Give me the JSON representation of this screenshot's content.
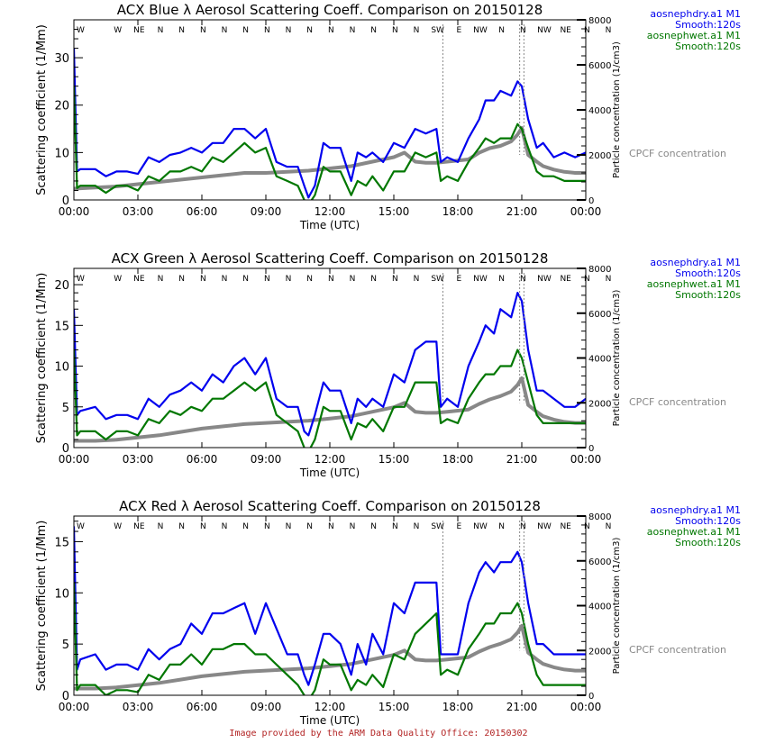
{
  "footer": {
    "text": "Image provided by the ARM Data Quality Office: 20150302",
    "color": "#b22222"
  },
  "colors": {
    "dry": "#0000ee",
    "wet": "#007700",
    "cpc": "#888888",
    "axis": "#000000"
  },
  "legend": {
    "dry_label": "aosnephdry.a1 M1",
    "dry_smooth": "Smooth:120s",
    "wet_label": "aosnephwet.a1 M1",
    "wet_smooth": "Smooth:120s",
    "cpc_label": "CPCF concentration"
  },
  "chart_data": [
    {
      "type": "line",
      "title": "ACX Blue λ Aerosol Scattering Coeff. Comparison on 20150128",
      "xlabel": "Time (UTC)",
      "ylabel": "Scattering coefficient (1/Mm)",
      "y2label": "Particle concentration (1/cm3)",
      "x_ticks": [
        "00:00",
        "03:00",
        "06:00",
        "09:00",
        "12:00",
        "15:00",
        "18:00",
        "21:00",
        "00:00"
      ],
      "xlim_hours": [
        0,
        24
      ],
      "ylim": [
        0,
        38
      ],
      "y_ticks": [
        0,
        10,
        20,
        30
      ],
      "y2lim": [
        0,
        8000
      ],
      "y2_ticks": [
        0,
        2000,
        4000,
        6000,
        8000
      ],
      "wind_dirs": [
        "W",
        "W",
        "NE",
        "N",
        "N",
        "N",
        "N",
        "N",
        "N",
        "N",
        "N",
        "N",
        "N",
        "N",
        "N",
        "N",
        "SW",
        "E",
        "NW",
        "N",
        "N",
        "NW",
        "NE",
        "N",
        "N"
      ],
      "series": [
        {
          "name": "aosnephdry.a1 M1",
          "color": "#0000ee",
          "x": [
            0,
            0.15,
            0.3,
            1,
            1.5,
            2,
            2.5,
            3,
            3.5,
            4,
            4.5,
            5,
            5.5,
            6,
            6.5,
            7,
            7.5,
            8,
            8.5,
            9,
            9.5,
            10,
            10.5,
            10.8,
            11,
            11.3,
            11.7,
            12,
            12.5,
            13,
            13.3,
            13.7,
            14,
            14.5,
            15,
            15.5,
            16,
            16.5,
            17,
            17.2,
            17.5,
            18,
            18.5,
            19,
            19.3,
            19.7,
            20,
            20.5,
            20.8,
            21,
            21.3,
            21.7,
            22,
            22.5,
            23,
            23.5,
            24
          ],
          "y": [
            32,
            6,
            6.5,
            6.5,
            5,
            6,
            6,
            5.5,
            9,
            8,
            9.5,
            10,
            11,
            10,
            12,
            12,
            15,
            15,
            13,
            15,
            8,
            7,
            7,
            3,
            0.5,
            3,
            12,
            11,
            11,
            4,
            10,
            9,
            10,
            8,
            12,
            11,
            15,
            14,
            15,
            8,
            9,
            8,
            13,
            17,
            21,
            21,
            23,
            22,
            25,
            24,
            17,
            11,
            12,
            9,
            10,
            9,
            10
          ]
        },
        {
          "name": "aosnephwet.a1 M1",
          "color": "#007700",
          "x": [
            0,
            0.15,
            0.3,
            1,
            1.5,
            2,
            2.5,
            3,
            3.5,
            4,
            4.5,
            5,
            5.5,
            6,
            6.5,
            7,
            7.5,
            8,
            8.5,
            9,
            9.5,
            10,
            10.5,
            10.8,
            11,
            11.3,
            11.7,
            12,
            12.5,
            13,
            13.3,
            13.7,
            14,
            14.5,
            15,
            15.5,
            16,
            16.5,
            17,
            17.2,
            17.5,
            18,
            18.5,
            19,
            19.3,
            19.7,
            20,
            20.5,
            20.8,
            21,
            21.3,
            21.7,
            22,
            22.5,
            23,
            23.5,
            24
          ],
          "y": [
            24,
            2.5,
            3,
            3,
            1.5,
            3,
            3,
            2,
            5,
            4,
            6,
            6,
            7,
            6,
            9,
            8,
            10,
            12,
            10,
            11,
            5,
            4,
            3,
            0,
            -1,
            1,
            7,
            6,
            6,
            1,
            4,
            3,
            5,
            2,
            6,
            6,
            10,
            9,
            10,
            4,
            5,
            4,
            8,
            11,
            13,
            12,
            13,
            13,
            16,
            15,
            11,
            6,
            5,
            5,
            4,
            4,
            4
          ]
        },
        {
          "name": "CPCF concentration",
          "color": "#888888",
          "axis": "right",
          "x": [
            0,
            1,
            2,
            3,
            4,
            5,
            6,
            7,
            8,
            9,
            10,
            11,
            12,
            13,
            14,
            15,
            15.5,
            16,
            16.5,
            17,
            17.5,
            18,
            18.5,
            19,
            19.5,
            20,
            20.5,
            20.8,
            21,
            21.3,
            21.7,
            22,
            22.5,
            23,
            23.5,
            24
          ],
          "y": [
            500,
            550,
            600,
            700,
            800,
            900,
            1000,
            1100,
            1200,
            1200,
            1250,
            1300,
            1400,
            1500,
            1700,
            1900,
            2100,
            1700,
            1650,
            1650,
            1700,
            1750,
            1800,
            2100,
            2300,
            2400,
            2600,
            2900,
            3200,
            2000,
            1700,
            1500,
            1350,
            1250,
            1200,
            1200
          ]
        }
      ]
    },
    {
      "type": "line",
      "title": "ACX Green λ Aerosol Scattering Coeff. Comparison on 20150128",
      "xlabel": "Time (UTC)",
      "ylabel": "Scattering coefficient (1/Mm)",
      "y2label": "Particle concentration (1/cm3)",
      "x_ticks": [
        "00:00",
        "03:00",
        "06:00",
        "09:00",
        "12:00",
        "15:00",
        "18:00",
        "21:00",
        "00:00"
      ],
      "xlim_hours": [
        0,
        24
      ],
      "ylim": [
        0,
        22
      ],
      "y_ticks": [
        0,
        5,
        10,
        15,
        20
      ],
      "y2lim": [
        0,
        8000
      ],
      "y2_ticks": [
        0,
        2000,
        4000,
        6000,
        8000
      ],
      "wind_dirs": [
        "W",
        "W",
        "NE",
        "N",
        "N",
        "N",
        "N",
        "N",
        "N",
        "N",
        "N",
        "N",
        "N",
        "N",
        "N",
        "N",
        "SW",
        "E",
        "NW",
        "N",
        "N",
        "NW",
        "NE",
        "N",
        "N"
      ],
      "series": [
        {
          "name": "aosnephdry.a1 M1",
          "color": "#0000ee",
          "x": [
            0,
            0.15,
            0.3,
            1,
            1.5,
            2,
            2.5,
            3,
            3.5,
            4,
            4.5,
            5,
            5.5,
            6,
            6.5,
            7,
            7.5,
            8,
            8.5,
            9,
            9.5,
            10,
            10.5,
            10.8,
            11,
            11.3,
            11.7,
            12,
            12.5,
            13,
            13.3,
            13.7,
            14,
            14.5,
            15,
            15.5,
            16,
            16.5,
            17,
            17.2,
            17.5,
            18,
            18.5,
            19,
            19.3,
            19.7,
            20,
            20.5,
            20.8,
            21,
            21.3,
            21.7,
            22,
            22.5,
            23,
            23.5,
            24
          ],
          "y": [
            17,
            4,
            4.5,
            5,
            3.5,
            4,
            4,
            3.5,
            6,
            5,
            6.5,
            7,
            8,
            7,
            9,
            8,
            10,
            11,
            9,
            11,
            6,
            5,
            5,
            2,
            1.5,
            4,
            8,
            7,
            7,
            3,
            6,
            5,
            6,
            5,
            9,
            8,
            12,
            13,
            13,
            5,
            6,
            5,
            10,
            13,
            15,
            14,
            17,
            16,
            19,
            18,
            12,
            7,
            7,
            6,
            5,
            5,
            6
          ]
        },
        {
          "name": "aosnephwet.a1 M1",
          "color": "#007700",
          "x": [
            0,
            0.15,
            0.3,
            1,
            1.5,
            2,
            2.5,
            3,
            3.5,
            4,
            4.5,
            5,
            5.5,
            6,
            6.5,
            7,
            7.5,
            8,
            8.5,
            9,
            9.5,
            10,
            10.5,
            10.8,
            11,
            11.3,
            11.7,
            12,
            12.5,
            13,
            13.3,
            13.7,
            14,
            14.5,
            15,
            15.5,
            16,
            16.5,
            17,
            17.2,
            17.5,
            18,
            18.5,
            19,
            19.3,
            19.7,
            20,
            20.5,
            20.8,
            21,
            21.3,
            21.7,
            22,
            22.5,
            23,
            23.5,
            24
          ],
          "y": [
            12,
            1.5,
            2,
            2,
            1,
            2,
            2,
            1.5,
            3.5,
            3,
            4.5,
            4,
            5,
            4.5,
            6,
            6,
            7,
            8,
            7,
            8,
            4,
            3,
            2,
            0,
            -0.5,
            1,
            5,
            4.5,
            4.5,
            1,
            3,
            2.5,
            3.5,
            2,
            5,
            5,
            8,
            8,
            8,
            3,
            3.5,
            3,
            6,
            8,
            9,
            9,
            10,
            10,
            12,
            11,
            8,
            4,
            3,
            3,
            3,
            3,
            3
          ]
        },
        {
          "name": "CPCF concentration",
          "color": "#888888",
          "axis": "right",
          "x": [
            0,
            1,
            2,
            3,
            4,
            5,
            6,
            7,
            8,
            9,
            10,
            11,
            12,
            13,
            14,
            15,
            15.5,
            16,
            16.5,
            17,
            17.5,
            18,
            18.5,
            19,
            19.5,
            20,
            20.5,
            20.8,
            21,
            21.3,
            21.7,
            22,
            22.5,
            23,
            23.5,
            24
          ],
          "y": [
            300,
            300,
            350,
            450,
            550,
            700,
            850,
            950,
            1050,
            1100,
            1150,
            1200,
            1300,
            1400,
            1600,
            1800,
            2000,
            1600,
            1550,
            1550,
            1600,
            1650,
            1700,
            1950,
            2150,
            2300,
            2500,
            2800,
            3100,
            1900,
            1600,
            1400,
            1250,
            1150,
            1100,
            1100
          ]
        }
      ]
    },
    {
      "type": "line",
      "title": "ACX Red λ Aerosol Scattering Coeff. Comparison on 20150128",
      "xlabel": "Time (UTC)",
      "ylabel": "Scattering coefficient (1/Mm)",
      "y2label": "Particle concentration (1/cm3)",
      "x_ticks": [
        "00:00",
        "03:00",
        "06:00",
        "09:00",
        "12:00",
        "15:00",
        "18:00",
        "21:00",
        "00:00"
      ],
      "xlim_hours": [
        0,
        24
      ],
      "ylim": [
        0,
        17.5
      ],
      "y_ticks": [
        0,
        5,
        10,
        15
      ],
      "y2lim": [
        0,
        8000
      ],
      "y2_ticks": [
        0,
        2000,
        4000,
        6000,
        8000
      ],
      "wind_dirs": [
        "W",
        "W",
        "NE",
        "N",
        "N",
        "N",
        "N",
        "N",
        "N",
        "N",
        "N",
        "N",
        "N",
        "N",
        "N",
        "N",
        "SW",
        "E",
        "NW",
        "N",
        "N",
        "NW",
        "NE",
        "N",
        "N"
      ],
      "series": [
        {
          "name": "aosnephdry.a1 M1",
          "color": "#0000ee",
          "x": [
            0,
            0.15,
            0.3,
            1,
            1.5,
            2,
            2.5,
            3,
            3.5,
            4,
            4.5,
            5,
            5.5,
            6,
            6.5,
            7,
            7.5,
            8,
            8.5,
            9,
            9.5,
            10,
            10.5,
            10.8,
            11,
            11.3,
            11.7,
            12,
            12.5,
            13,
            13.3,
            13.7,
            14,
            14.5,
            15,
            15.5,
            16,
            16.5,
            17,
            17.2,
            17.5,
            18,
            18.5,
            19,
            19.3,
            19.7,
            20,
            20.5,
            20.8,
            21,
            21.3,
            21.7,
            22,
            22.5,
            23,
            23.5,
            24
          ],
          "y": [
            16.5,
            2.5,
            3.5,
            4,
            2.5,
            3,
            3,
            2.5,
            4.5,
            3.5,
            4.5,
            5,
            7,
            6,
            8,
            8,
            8.5,
            9,
            6,
            9,
            6.5,
            4,
            4,
            2,
            1,
            3,
            6,
            6,
            5,
            2,
            5,
            3,
            6,
            4,
            9,
            8,
            11,
            11,
            11,
            4,
            4,
            4,
            9,
            12,
            13,
            12,
            13,
            13,
            14,
            13,
            9,
            5,
            5,
            4,
            4,
            4,
            4
          ]
        },
        {
          "name": "aosnephwet.a1 M1",
          "color": "#007700",
          "x": [
            0,
            0.15,
            0.3,
            1,
            1.5,
            2,
            2.5,
            3,
            3.5,
            4,
            4.5,
            5,
            5.5,
            6,
            6.5,
            7,
            7.5,
            8,
            8.5,
            9,
            9.5,
            10,
            10.5,
            10.8,
            11,
            11.3,
            11.7,
            12,
            12.5,
            13,
            13.3,
            13.7,
            14,
            14.5,
            15,
            15.5,
            16,
            16.5,
            17,
            17.2,
            17.5,
            18,
            18.5,
            19,
            19.3,
            19.7,
            20,
            20.5,
            20.8,
            21,
            21.3,
            21.7,
            22,
            22.5,
            23,
            23.5,
            24
          ],
          "y": [
            11,
            0.5,
            1,
            1,
            0,
            0.5,
            0.5,
            0.3,
            2,
            1.5,
            3,
            3,
            4,
            3,
            4.5,
            4.5,
            5,
            5,
            4,
            4,
            3,
            2,
            1,
            0,
            -0.5,
            0.5,
            3.5,
            3,
            3,
            0.5,
            1.5,
            1,
            2,
            0.8,
            4,
            3.5,
            6,
            7,
            8,
            2,
            2.5,
            2,
            4.5,
            6,
            7,
            7,
            8,
            8,
            9,
            8,
            5,
            2,
            1,
            1,
            1,
            1,
            1
          ]
        },
        {
          "name": "CPCF concentration",
          "color": "#888888",
          "axis": "right",
          "x": [
            0,
            1,
            2,
            3,
            4,
            5,
            6,
            7,
            8,
            9,
            10,
            11,
            12,
            13,
            14,
            15,
            15.5,
            16,
            16.5,
            17,
            17.5,
            18,
            18.5,
            19,
            19.5,
            20,
            20.5,
            20.8,
            21,
            21.3,
            21.7,
            22,
            22.5,
            23,
            23.5,
            24
          ],
          "y": [
            300,
            300,
            350,
            450,
            550,
            700,
            850,
            950,
            1050,
            1100,
            1150,
            1200,
            1300,
            1400,
            1600,
            1800,
            2000,
            1600,
            1550,
            1550,
            1600,
            1650,
            1700,
            1950,
            2150,
            2300,
            2500,
            2800,
            3100,
            1900,
            1600,
            1400,
            1250,
            1150,
            1100,
            1100
          ]
        }
      ]
    }
  ]
}
